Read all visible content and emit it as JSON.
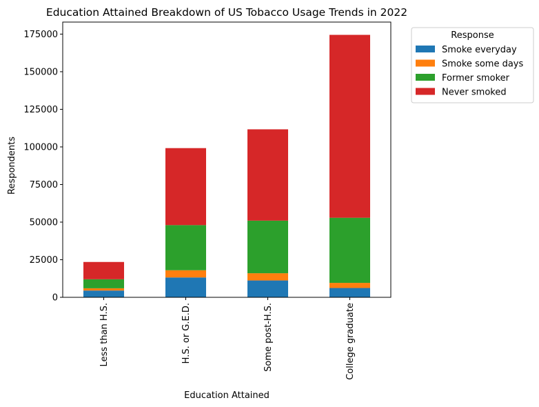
{
  "chart_data": {
    "type": "bar",
    "stacked": true,
    "title": "Education Attained Breakdown of US Tobacco Usage Trends in 2022",
    "xlabel": "Education Attained",
    "ylabel": "Respondents",
    "categories": [
      "Less than H.S.",
      "H.S. or G.E.D.",
      "Some post-H.S.",
      "College graduate"
    ],
    "series": [
      {
        "name": "Smoke everyday",
        "color": "#1f77b4",
        "values": [
          4500,
          13200,
          11200,
          6200
        ]
      },
      {
        "name": "Smoke some days",
        "color": "#ff7f0e",
        "values": [
          1500,
          4800,
          4800,
          3400
        ]
      },
      {
        "name": "Former smoker",
        "color": "#2ca02c",
        "values": [
          6000,
          30000,
          35000,
          43300
        ]
      },
      {
        "name": "Never smoked",
        "color": "#d62728",
        "values": [
          11500,
          51200,
          60700,
          121600
        ]
      }
    ],
    "ylim": [
      0,
      183000
    ],
    "yticks": [
      0,
      25000,
      50000,
      75000,
      100000,
      125000,
      150000,
      175000
    ],
    "legend": {
      "title": "Response",
      "placement": "outside-upper-right"
    },
    "grid": false
  }
}
